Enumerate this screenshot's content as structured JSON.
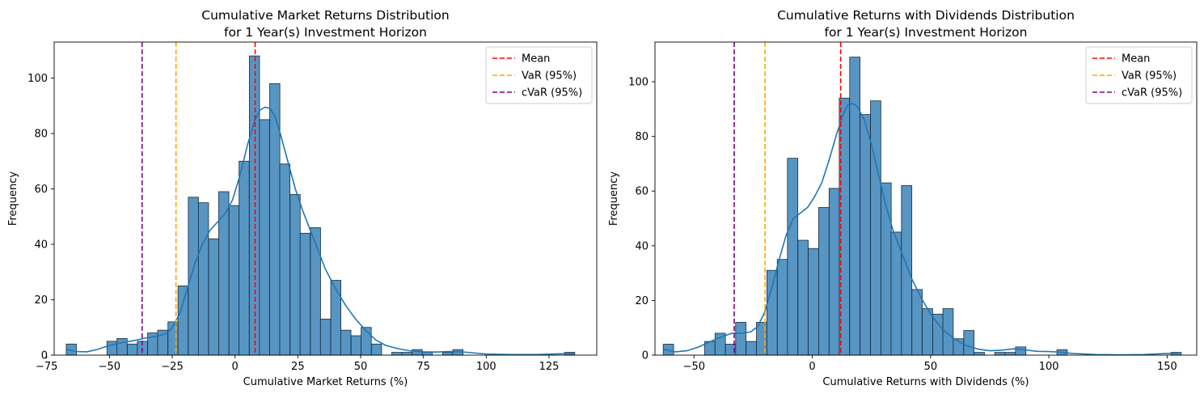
{
  "chart_data": [
    {
      "type": "bar",
      "title_line1": "Cumulative Market Returns Distribution",
      "title_line2": "for 1 Year(s) Investment Horizon",
      "xlabel": "Cumulative Market Returns (%)",
      "ylabel": "Frequency",
      "xlim": [
        -72,
        144
      ],
      "ylim": [
        0,
        113
      ],
      "xticks": [
        -75,
        -50,
        -25,
        0,
        25,
        50,
        75,
        100,
        125
      ],
      "yticks": [
        0,
        20,
        40,
        60,
        80,
        100
      ],
      "bin_width": 4.05,
      "bins": [
        {
          "x": -67.2,
          "count": 4
        },
        {
          "x": -63.2,
          "count": 0
        },
        {
          "x": -59.1,
          "count": 0
        },
        {
          "x": -55.1,
          "count": 0
        },
        {
          "x": -51.0,
          "count": 5
        },
        {
          "x": -47.0,
          "count": 6
        },
        {
          "x": -42.9,
          "count": 4
        },
        {
          "x": -38.9,
          "count": 5
        },
        {
          "x": -34.8,
          "count": 8
        },
        {
          "x": -30.8,
          "count": 9
        },
        {
          "x": -26.7,
          "count": 12
        },
        {
          "x": -22.7,
          "count": 25
        },
        {
          "x": -18.6,
          "count": 57
        },
        {
          "x": -14.6,
          "count": 55
        },
        {
          "x": -10.5,
          "count": 42
        },
        {
          "x": -6.5,
          "count": 59
        },
        {
          "x": -2.4,
          "count": 54
        },
        {
          "x": 1.6,
          "count": 70
        },
        {
          "x": 5.7,
          "count": 108
        },
        {
          "x": 9.7,
          "count": 85
        },
        {
          "x": 13.8,
          "count": 98
        },
        {
          "x": 17.8,
          "count": 69
        },
        {
          "x": 21.9,
          "count": 58
        },
        {
          "x": 25.9,
          "count": 44
        },
        {
          "x": 30.0,
          "count": 46
        },
        {
          "x": 34.0,
          "count": 13
        },
        {
          "x": 38.1,
          "count": 27
        },
        {
          "x": 42.1,
          "count": 9
        },
        {
          "x": 46.2,
          "count": 7
        },
        {
          "x": 50.2,
          "count": 10
        },
        {
          "x": 54.3,
          "count": 4
        },
        {
          "x": 58.3,
          "count": 0
        },
        {
          "x": 62.4,
          "count": 1
        },
        {
          "x": 66.4,
          "count": 1
        },
        {
          "x": 70.5,
          "count": 2
        },
        {
          "x": 74.5,
          "count": 1
        },
        {
          "x": 78.6,
          "count": 0
        },
        {
          "x": 82.6,
          "count": 1
        },
        {
          "x": 86.7,
          "count": 2
        },
        {
          "x": 90.7,
          "count": 0
        },
        {
          "x": 94.8,
          "count": 0
        },
        {
          "x": 98.8,
          "count": 0
        },
        {
          "x": 102.9,
          "count": 0
        },
        {
          "x": 106.9,
          "count": 0
        },
        {
          "x": 111.0,
          "count": 0
        },
        {
          "x": 115.0,
          "count": 0
        },
        {
          "x": 119.1,
          "count": 0
        },
        {
          "x": 123.1,
          "count": 0
        },
        {
          "x": 127.2,
          "count": 0
        },
        {
          "x": 131.2,
          "count": 1
        }
      ],
      "kde": [
        [
          -67,
          2
        ],
        [
          -63,
          1.3
        ],
        [
          -59,
          1.2
        ],
        [
          -55,
          2
        ],
        [
          -50,
          3.5
        ],
        [
          -45,
          4.5
        ],
        [
          -40,
          5.3
        ],
        [
          -35,
          6.3
        ],
        [
          -30,
          7
        ],
        [
          -27,
          8
        ],
        [
          -25,
          10
        ],
        [
          -22,
          15
        ],
        [
          -19,
          24
        ],
        [
          -16,
          33
        ],
        [
          -13,
          40
        ],
        [
          -10,
          45
        ],
        [
          -7,
          48
        ],
        [
          -4,
          51
        ],
        [
          -1,
          56
        ],
        [
          2,
          65
        ],
        [
          5,
          76
        ],
        [
          8,
          85
        ],
        [
          10,
          88.5
        ],
        [
          12,
          89.5
        ],
        [
          14,
          89
        ],
        [
          16,
          86
        ],
        [
          18,
          80
        ],
        [
          21,
          70
        ],
        [
          24,
          60
        ],
        [
          27,
          52
        ],
        [
          30,
          45
        ],
        [
          33,
          38
        ],
        [
          36,
          31
        ],
        [
          40,
          24
        ],
        [
          44,
          18
        ],
        [
          48,
          13
        ],
        [
          52,
          9
        ],
        [
          56,
          5.5
        ],
        [
          60,
          3.5
        ],
        [
          65,
          2.3
        ],
        [
          70,
          1.5
        ],
        [
          75,
          1.2
        ],
        [
          80,
          1.1
        ],
        [
          85,
          1.3
        ],
        [
          90,
          1.2
        ],
        [
          95,
          0.8
        ],
        [
          100,
          0.4
        ],
        [
          110,
          0.2
        ],
        [
          120,
          0.2
        ],
        [
          130,
          0.5
        ],
        [
          135,
          0.6
        ]
      ],
      "lines": [
        {
          "name": "Mean",
          "x": 8.0,
          "color": "#ff0000"
        },
        {
          "name": "VaR (95%)",
          "x": -23.5,
          "color": "#ffa500"
        },
        {
          "name": "cVaR (95%)",
          "x": -37.0,
          "color": "#800080"
        }
      ],
      "legend_position": "upper right"
    },
    {
      "type": "bar",
      "title_line1": "Cumulative Returns with Dividends Distribution",
      "title_line2": "for 1 Year(s) Investment Horizon",
      "xlabel": "Cumulative Returns with Dividends (%)",
      "ylabel": "Frequency",
      "xlim": [
        -66.5,
        162.5
      ],
      "ylim": [
        0,
        114.5
      ],
      "xticks": [
        -50,
        0,
        50,
        100,
        150
      ],
      "yticks": [
        0,
        20,
        40,
        60,
        80,
        100
      ],
      "bin_width": 4.38,
      "bins": [
        {
          "x": -63.0,
          "count": 4
        },
        {
          "x": -58.6,
          "count": 0
        },
        {
          "x": -54.3,
          "count": 0
        },
        {
          "x": -49.9,
          "count": 0
        },
        {
          "x": -45.5,
          "count": 5
        },
        {
          "x": -41.1,
          "count": 8
        },
        {
          "x": -36.7,
          "count": 4
        },
        {
          "x": -32.4,
          "count": 12
        },
        {
          "x": -28.0,
          "count": 5
        },
        {
          "x": -23.6,
          "count": 12
        },
        {
          "x": -19.2,
          "count": 31
        },
        {
          "x": -14.8,
          "count": 35
        },
        {
          "x": -10.5,
          "count": 72
        },
        {
          "x": -6.1,
          "count": 42
        },
        {
          "x": -1.7,
          "count": 39
        },
        {
          "x": 2.7,
          "count": 54
        },
        {
          "x": 7.1,
          "count": 61
        },
        {
          "x": 11.4,
          "count": 94
        },
        {
          "x": 15.8,
          "count": 109
        },
        {
          "x": 20.2,
          "count": 88
        },
        {
          "x": 24.6,
          "count": 93
        },
        {
          "x": 29.0,
          "count": 63
        },
        {
          "x": 33.3,
          "count": 45
        },
        {
          "x": 37.7,
          "count": 62
        },
        {
          "x": 42.1,
          "count": 24
        },
        {
          "x": 46.5,
          "count": 17
        },
        {
          "x": 50.9,
          "count": 15
        },
        {
          "x": 55.2,
          "count": 17
        },
        {
          "x": 59.6,
          "count": 6
        },
        {
          "x": 64.0,
          "count": 9
        },
        {
          "x": 68.4,
          "count": 1
        },
        {
          "x": 72.8,
          "count": 0
        },
        {
          "x": 77.1,
          "count": 1
        },
        {
          "x": 81.5,
          "count": 1
        },
        {
          "x": 85.9,
          "count": 3
        },
        {
          "x": 90.3,
          "count": 0
        },
        {
          "x": 94.7,
          "count": 0
        },
        {
          "x": 99.0,
          "count": 0
        },
        {
          "x": 103.4,
          "count": 2
        },
        {
          "x": 107.8,
          "count": 0
        },
        {
          "x": 112.2,
          "count": 0
        },
        {
          "x": 116.6,
          "count": 0
        },
        {
          "x": 120.9,
          "count": 0
        },
        {
          "x": 125.3,
          "count": 0
        },
        {
          "x": 129.7,
          "count": 0
        },
        {
          "x": 134.1,
          "count": 0
        },
        {
          "x": 138.5,
          "count": 0
        },
        {
          "x": 142.8,
          "count": 0
        },
        {
          "x": 147.2,
          "count": 0
        },
        {
          "x": 151.6,
          "count": 1
        }
      ],
      "kde": [
        [
          -63,
          2.2
        ],
        [
          -58,
          1.2
        ],
        [
          -53,
          1.6
        ],
        [
          -48,
          3
        ],
        [
          -43,
          5
        ],
        [
          -38,
          6.8
        ],
        [
          -34,
          8
        ],
        [
          -30,
          8
        ],
        [
          -26,
          8.5
        ],
        [
          -23,
          10.5
        ],
        [
          -20,
          16
        ],
        [
          -17,
          25
        ],
        [
          -14,
          35
        ],
        [
          -11,
          44
        ],
        [
          -8,
          50
        ],
        [
          -5,
          52
        ],
        [
          -2,
          54
        ],
        [
          1,
          58
        ],
        [
          4,
          63
        ],
        [
          7,
          71
        ],
        [
          10,
          80
        ],
        [
          13,
          88
        ],
        [
          15,
          91.5
        ],
        [
          17,
          92
        ],
        [
          19,
          91
        ],
        [
          22,
          86
        ],
        [
          25,
          77
        ],
        [
          28,
          66
        ],
        [
          31,
          55
        ],
        [
          34,
          46
        ],
        [
          38,
          37
        ],
        [
          42,
          28
        ],
        [
          46,
          21
        ],
        [
          50,
          15
        ],
        [
          55,
          9.5
        ],
        [
          60,
          6
        ],
        [
          65,
          3.5
        ],
        [
          70,
          2.2
        ],
        [
          75,
          1.6
        ],
        [
          80,
          1.8
        ],
        [
          85,
          2.3
        ],
        [
          90,
          1.9
        ],
        [
          95,
          1.4
        ],
        [
          100,
          1.3
        ],
        [
          105,
          1.1
        ],
        [
          110,
          0.6
        ],
        [
          120,
          0.2
        ],
        [
          130,
          0.1
        ],
        [
          140,
          0.2
        ],
        [
          150,
          0.6
        ],
        [
          155,
          0.7
        ]
      ],
      "lines": [
        {
          "name": "Mean",
          "x": 12.0,
          "color": "#ff0000"
        },
        {
          "name": "VaR (95%)",
          "x": -20.0,
          "color": "#ffa500"
        },
        {
          "name": "cVaR (95%)",
          "x": -33.0,
          "color": "#800080"
        }
      ],
      "legend_position": "upper right"
    }
  ],
  "style": {
    "bar_fill": "#4e8fc0",
    "bar_edge": "#1a2a3a",
    "kde_color": "#1f77b4"
  }
}
